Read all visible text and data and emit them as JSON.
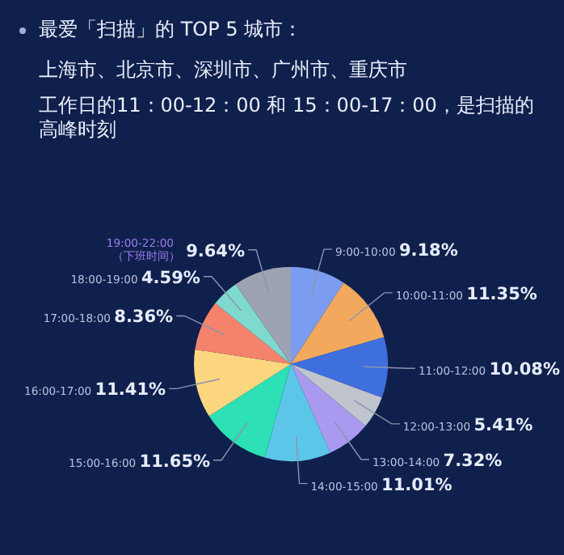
{
  "chart_data": {
    "type": "pie",
    "title": "最爱「扫描」的 TOP 5 城市：",
    "subtitle": "上海市、北京市、深圳市、广州市、重庆市",
    "annotations": [
      "工作日的11：00-12：00 和 15：00-17：00，是扫描的高峰时刻"
    ],
    "categories": [
      "9:00-10:00",
      "10:00-11:00",
      "11:00-12:00",
      "12:00-13:00",
      "13:00-14:00",
      "14:00-15:00",
      "15:00-16:00",
      "16:00-17:00",
      "17:00-18:00",
      "18:00-19:00",
      "19:00-22:00（下班时间）"
    ],
    "values": [
      9.18,
      11.35,
      10.08,
      5.41,
      7.32,
      11.01,
      11.65,
      11.41,
      8.36,
      4.59,
      9.64
    ],
    "value_labels": [
      "9.18%",
      "11.35%",
      "10.08%",
      "5.41%",
      "7.32%",
      "11.01%",
      "11.65%",
      "11.41%",
      "8.36%",
      "4.59%",
      "9.64%"
    ],
    "colors": [
      "#7b9cf0",
      "#f2a95e",
      "#3e6fdd",
      "#c0c4cc",
      "#a99af0",
      "#5cc6e8",
      "#2de0b5",
      "#fcd77f",
      "#f5836c",
      "#7fd9cf",
      "#9ea3b3"
    ],
    "legend": false
  }
}
